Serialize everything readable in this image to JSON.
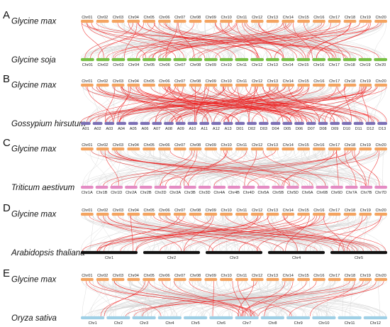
{
  "panels": [
    {
      "letter": "A",
      "top_species": "Glycine max",
      "bottom_species": "Glycine soja",
      "top_chromosomes": [
        "Chr01",
        "Chr02",
        "Chr03",
        "Chr04",
        "Chr05",
        "Chr06",
        "Chr07",
        "Chr08",
        "Chr09",
        "Chr10",
        "Chr11",
        "Chr12",
        "Chr13",
        "Chr14",
        "Chr15",
        "Chr16",
        "Chr17",
        "Chr18",
        "Chr19",
        "Chr20"
      ],
      "bottom_chromosomes": [
        "Chr01",
        "Chr02",
        "Chr03",
        "Chr04",
        "Chr05",
        "Chr06",
        "Chr07",
        "Chr08",
        "Chr09",
        "Chr10",
        "Chr11",
        "Chr12",
        "Chr13",
        "Chr14",
        "Chr15",
        "Chr16",
        "Chr17",
        "Chr18",
        "Chr19",
        "Chr20"
      ],
      "bottom_color": "#76c043",
      "red_links": 55
    },
    {
      "letter": "B",
      "top_species": "Glycine max",
      "bottom_species": "Gossypium hirsutum",
      "top_chromosomes": [
        "Chr01",
        "Chr02",
        "Chr03",
        "Chr04",
        "Chr05",
        "Chr06",
        "Chr07",
        "Chr08",
        "Chr09",
        "Chr10",
        "Chr11",
        "Chr12",
        "Chr13",
        "Chr14",
        "Chr15",
        "Chr16",
        "Chr17",
        "Chr18",
        "Chr19",
        "Chr20"
      ],
      "bottom_chromosomes": [
        "A01",
        "A02",
        "A03",
        "A04",
        "A05",
        "A06",
        "A07",
        "A08",
        "A09",
        "A10",
        "A11",
        "A12",
        "A13",
        "D01",
        "D02",
        "D03",
        "D04",
        "D05",
        "D06",
        "D07",
        "D08",
        "D09",
        "D10",
        "D11",
        "D12",
        "D13"
      ],
      "bottom_color": "#7b6fb5",
      "red_links": 90
    },
    {
      "letter": "C",
      "top_species": "Glycine max",
      "bottom_species": "Triticum aestivum",
      "top_chromosomes": [
        "Chr01",
        "Chr02",
        "Chr03",
        "Chr04",
        "Chr05",
        "Chr06",
        "Chr07",
        "Chr08",
        "Chr09",
        "Chr10",
        "Chr11",
        "Chr12",
        "Chr13",
        "Chr14",
        "Chr15",
        "Chr16",
        "Chr17",
        "Chr18",
        "Chr19",
        "Chr20"
      ],
      "bottom_chromosomes": [
        "Chr1A",
        "Chr1B",
        "Chr1D",
        "Chr2A",
        "Chr2B",
        "Chr2D",
        "Chr3A",
        "Chr3B",
        "Chr3D",
        "Chr4A",
        "Chr4B",
        "Chr4D",
        "Chr5A",
        "Chr5B",
        "Chr5D",
        "Chr6A",
        "Chr6B",
        "Chr6D",
        "Chr7A",
        "Chr7B",
        "Chr7D"
      ],
      "bottom_color": "#e48cc4",
      "red_links": 30
    },
    {
      "letter": "D",
      "top_species": "Glycine max",
      "bottom_species": "Arabidopsis thaliana",
      "top_chromosomes": [
        "Chr01",
        "Chr02",
        "Chr03",
        "Chr04",
        "Chr05",
        "Chr06",
        "Chr07",
        "Chr08",
        "Chr09",
        "Chr10",
        "Chr11",
        "Chr12",
        "Chr13",
        "Chr14",
        "Chr15",
        "Chr16",
        "Chr17",
        "Chr18",
        "Chr19",
        "Chr20"
      ],
      "bottom_chromosomes": [
        "Chr1",
        "Chr2",
        "Chr3",
        "Chr4",
        "Chr5"
      ],
      "bottom_color": "#111111",
      "red_links": 40
    },
    {
      "letter": "E",
      "top_species": "Glycine max",
      "bottom_species": "Oryza sativa",
      "top_chromosomes": [
        "Chr01",
        "Chr02",
        "Chr03",
        "Chr04",
        "Chr05",
        "Chr06",
        "Chr07",
        "Chr08",
        "Chr09",
        "Chr10",
        "Chr11",
        "Chr12",
        "Chr13",
        "Chr14",
        "Chr15",
        "Chr16",
        "Chr17",
        "Chr18",
        "Chr19",
        "Chr20"
      ],
      "bottom_chromosomes": [
        "Chr1",
        "Chr2",
        "Chr3",
        "Chr4",
        "Chr5",
        "Chr6",
        "Chr7",
        "Chr8",
        "Chr9",
        "Chr10",
        "Chr11",
        "Chr12"
      ],
      "bottom_color": "#9fd0e6",
      "red_links": 26
    }
  ],
  "colors": {
    "top_chromosome": "#f4a460",
    "highlight_link": "#ee2222",
    "background_link": "#cfcfcf"
  }
}
